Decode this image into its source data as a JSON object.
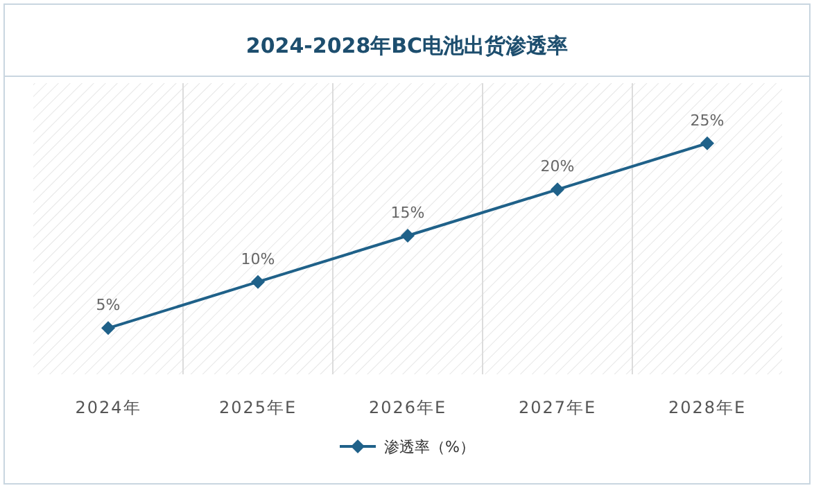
{
  "chart_data": {
    "type": "line",
    "title": "2024-2028年BC电池出货渗透率",
    "categories": [
      "2024年",
      "2025年E",
      "2026年E",
      "2027年E",
      "2028年E"
    ],
    "series": [
      {
        "name": "渗透率（%）",
        "color": "#1f6189",
        "values": [
          5,
          10,
          15,
          20,
          25
        ],
        "value_labels": [
          "5%",
          "10%",
          "15%",
          "20%",
          "25%"
        ]
      }
    ],
    "marker": "diamond",
    "grid": "x",
    "legend": "bottom"
  }
}
